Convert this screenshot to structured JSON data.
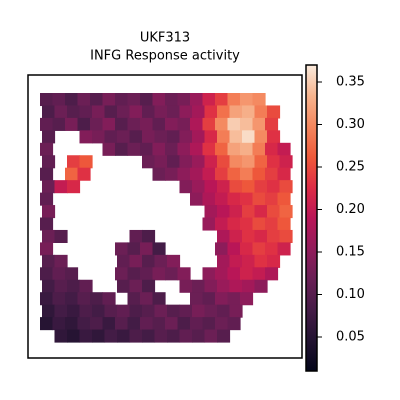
{
  "chart_data": {
    "type": "spatial",
    "title": "UKF313",
    "subtitle": "INFG Response activity",
    "clim": [
      0.01,
      0.37
    ],
    "cticks": [
      0.05,
      {
        "value": 0.1,
        "label": "0.10"
      },
      0.15,
      {
        "value": 0.2,
        "label": "0.20"
      },
      0.25,
      {
        "value": 0.3,
        "label": "0.30"
      },
      0.35
    ],
    "values": [
      [
        0.1,
        0.11,
        0.09,
        0.12,
        0.1,
        0.13,
        0.11,
        0.12,
        0.1,
        0.14,
        0.12,
        0.13,
        0.16,
        0.21,
        0.24,
        0.29,
        0.31,
        0.3,
        null,
        null
      ],
      [
        0.09,
        0.12,
        0.1,
        0.11,
        0.13,
        0.1,
        0.12,
        0.14,
        0.11,
        0.13,
        0.12,
        0.15,
        0.17,
        0.23,
        0.28,
        0.32,
        0.33,
        0.29,
        0.25,
        null
      ],
      [
        0.11,
        0.1,
        0.13,
        0.09,
        0.12,
        0.14,
        0.1,
        0.12,
        0.13,
        0.11,
        0.14,
        0.13,
        0.18,
        0.24,
        0.3,
        0.35,
        0.34,
        0.31,
        0.24,
        null
      ],
      [
        0.1,
        null,
        null,
        0.14,
        0.13,
        0.11,
        0.12,
        0.1,
        0.13,
        0.12,
        0.11,
        0.14,
        0.17,
        0.22,
        0.29,
        0.34,
        0.36,
        0.3,
        0.23,
        null
      ],
      [
        0.12,
        null,
        null,
        null,
        null,
        0.13,
        0.1,
        0.12,
        0.11,
        0.14,
        0.12,
        0.15,
        0.18,
        0.23,
        0.27,
        0.32,
        0.33,
        0.29,
        0.22,
        0.2
      ],
      [
        0.11,
        null,
        0.24,
        0.26,
        null,
        null,
        null,
        null,
        0.12,
        0.13,
        0.11,
        0.14,
        0.16,
        0.21,
        0.25,
        0.3,
        0.31,
        0.27,
        0.23,
        0.21
      ],
      [
        0.1,
        null,
        0.27,
        0.23,
        null,
        null,
        null,
        null,
        null,
        0.12,
        0.13,
        0.15,
        0.17,
        0.2,
        0.24,
        0.27,
        0.29,
        0.26,
        0.24,
        0.22
      ],
      [
        0.12,
        0.2,
        0.22,
        null,
        null,
        null,
        null,
        null,
        null,
        null,
        null,
        0.14,
        0.16,
        0.19,
        0.21,
        0.25,
        0.26,
        0.24,
        0.23,
        0.25
      ],
      [
        0.11,
        null,
        null,
        null,
        null,
        null,
        null,
        null,
        null,
        null,
        null,
        null,
        0.15,
        0.18,
        0.2,
        0.22,
        0.23,
        0.25,
        0.24,
        0.26
      ],
      [
        0.13,
        null,
        null,
        null,
        null,
        null,
        null,
        null,
        null,
        null,
        null,
        null,
        null,
        0.17,
        0.19,
        0.21,
        0.24,
        0.22,
        0.25,
        0.27
      ],
      [
        0.1,
        null,
        null,
        null,
        null,
        null,
        null,
        null,
        null,
        null,
        null,
        null,
        null,
        0.16,
        0.2,
        0.22,
        0.23,
        0.25,
        0.24,
        0.26
      ],
      [
        0.12,
        0.1,
        null,
        null,
        null,
        null,
        null,
        0.11,
        0.09,
        null,
        null,
        null,
        null,
        null,
        0.18,
        0.21,
        0.23,
        0.22,
        0.24,
        0.25
      ],
      [
        0.13,
        null,
        null,
        null,
        null,
        null,
        0.12,
        0.1,
        0.13,
        0.08,
        null,
        null,
        null,
        null,
        0.15,
        0.19,
        0.22,
        0.24,
        0.23,
        0.21
      ],
      [
        0.1,
        0.12,
        null,
        null,
        null,
        null,
        0.11,
        0.13,
        0.1,
        0.12,
        0.14,
        null,
        null,
        null,
        0.17,
        0.2,
        0.21,
        0.23,
        0.22,
        null
      ],
      [
        0.09,
        0.11,
        0.1,
        null,
        null,
        null,
        0.12,
        0.1,
        0.11,
        0.13,
        0.12,
        0.14,
        null,
        0.15,
        0.17,
        0.19,
        0.21,
        0.2,
        0.18,
        null
      ],
      [
        0.08,
        0.1,
        0.09,
        0.11,
        null,
        null,
        0.1,
        0.12,
        0.09,
        null,
        null,
        0.13,
        0.12,
        0.14,
        0.16,
        0.18,
        0.17,
        0.15,
        null,
        null
      ],
      [
        0.07,
        0.09,
        0.08,
        0.1,
        0.09,
        0.11,
        null,
        0.1,
        0.12,
        0.09,
        null,
        null,
        0.12,
        0.11,
        0.14,
        0.13,
        0.15,
        null,
        null,
        null
      ],
      [
        0.06,
        0.08,
        0.07,
        0.09,
        0.08,
        0.1,
        0.11,
        0.09,
        0.1,
        0.12,
        0.1,
        0.11,
        0.13,
        0.12,
        0.11,
        0.13,
        null,
        null,
        null,
        null
      ],
      [
        0.05,
        0.07,
        0.06,
        0.08,
        0.09,
        0.07,
        0.1,
        0.08,
        0.11,
        0.1,
        0.12,
        0.09,
        0.11,
        0.1,
        0.12,
        0.11,
        null,
        null,
        null,
        null
      ],
      [
        null,
        0.06,
        0.05,
        0.07,
        0.06,
        0.08,
        0.07,
        0.09,
        0.08,
        0.1,
        0.09,
        0.11,
        0.1,
        0.12,
        0.1,
        null,
        null,
        null,
        null,
        null
      ]
    ]
  }
}
